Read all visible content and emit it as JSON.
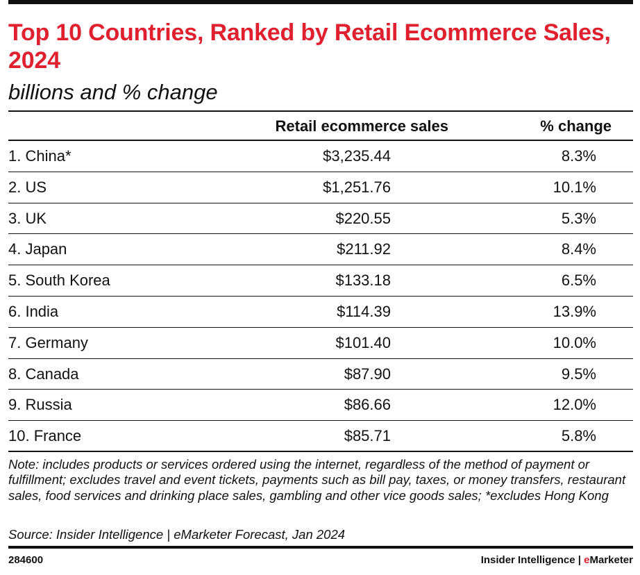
{
  "chart_data": {
    "type": "table",
    "title": "Top 10 Countries, Ranked by Retail Ecommerce Sales, 2024",
    "subtitle": "billions and % change",
    "columns": [
      "",
      "Retail ecommerce sales",
      "% change"
    ],
    "rows": [
      {
        "name": "1. China*",
        "sales": "$3,235.44",
        "change": "8.3%"
      },
      {
        "name": "2. US",
        "sales": "$1,251.76",
        "change": "10.1%"
      },
      {
        "name": "3. UK",
        "sales": "$220.55",
        "change": "5.3%"
      },
      {
        "name": "4. Japan",
        "sales": "$211.92",
        "change": "8.4%"
      },
      {
        "name": "5. South Korea",
        "sales": "$133.18",
        "change": "6.5%"
      },
      {
        "name": "6. India",
        "sales": "$114.39",
        "change": "13.9%"
      },
      {
        "name": "7. Germany",
        "sales": "$101.40",
        "change": "10.0%"
      },
      {
        "name": "8. Canada",
        "sales": "$87.90",
        "change": "9.5%"
      },
      {
        "name": "9. Russia",
        "sales": "$86.66",
        "change": "12.0%"
      },
      {
        "name": "10. France",
        "sales": "$85.71",
        "change": "5.8%"
      }
    ],
    "sales_billions": [
      3235.44,
      1251.76,
      220.55,
      211.92,
      133.18,
      114.39,
      101.4,
      87.9,
      86.66,
      85.71
    ],
    "pct_change": [
      8.3,
      10.1,
      5.3,
      8.4,
      6.5,
      13.9,
      10.0,
      9.5,
      12.0,
      5.8
    ],
    "note": "Note: includes products or services ordered using the internet, regardless of the method of payment or fulfillment; excludes travel and event tickets, payments such as bill pay, taxes, or money transfers, restaurant sales, food services and drinking place sales, gambling and other vice goods sales; *excludes Hong Kong",
    "source": "Source: Insider Intelligence | eMarketer Forecast, Jan 2024"
  },
  "footer": {
    "chart_id": "284600",
    "brand_left": "Insider Intelligence | ",
    "brand_e": "e",
    "brand_rest": "Marketer"
  },
  "colors": {
    "title": "#e0202f",
    "text": "#111111",
    "rule": "#111111"
  }
}
